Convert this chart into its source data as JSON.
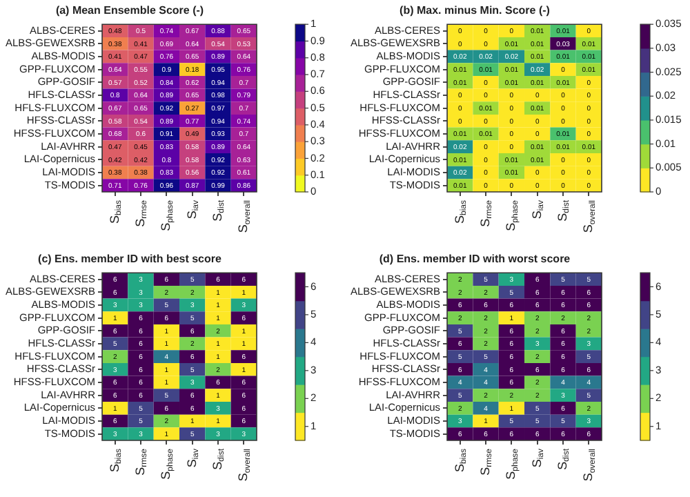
{
  "chart_data": [
    {
      "type": "heatmap",
      "title": "(a) Mean Ensemble Score (-)",
      "categories": [
        "S$_{bias}$",
        "S$_{rmse}$",
        "S$_{phase}$",
        "S$_{iav}$",
        "S$_{dist}$",
        "S$_{overall}$"
      ],
      "y_categories": [
        "ALBS-CERES",
        "ALBS-GEWEXSRB",
        "ALBS-MODIS",
        "GPP-FLUXCOM",
        "GPP-GOSIF",
        "HFLS-CLASSr",
        "HFLS-FLUXCOM",
        "HFSS-CLASSr",
        "HFSS-FLUXCOM",
        "LAI-AVHRR",
        "LAI-Copernicus",
        "LAI-MODIS",
        "TS-MODIS"
      ],
      "cells": [
        [
          0.48,
          0.5,
          0.74,
          0.67,
          0.88,
          0.65
        ],
        [
          0.38,
          0.41,
          0.69,
          0.64,
          0.54,
          0.53
        ],
        [
          0.41,
          0.47,
          0.76,
          0.65,
          0.89,
          0.64
        ],
        [
          0.64,
          0.55,
          0.9,
          0.18,
          0.95,
          0.76
        ],
        [
          0.57,
          0.52,
          0.84,
          0.62,
          0.94,
          0.7
        ],
        [
          0.8,
          0.64,
          0.89,
          0.65,
          0.98,
          0.79
        ],
        [
          0.67,
          0.65,
          0.92,
          0.27,
          0.97,
          0.7
        ],
        [
          0.58,
          0.54,
          0.89,
          0.77,
          0.94,
          0.74
        ],
        [
          0.68,
          0.6,
          0.91,
          0.49,
          0.93,
          0.7
        ],
        [
          0.47,
          0.45,
          0.83,
          0.58,
          0.89,
          0.64
        ],
        [
          0.42,
          0.42,
          0.8,
          0.58,
          0.92,
          0.63
        ],
        [
          0.38,
          0.38,
          0.83,
          0.56,
          0.92,
          0.61
        ],
        [
          0.71,
          0.76,
          0.96,
          0.87,
          0.99,
          0.86
        ]
      ],
      "data_labels": true,
      "colors": [
        "#f0f921",
        "#fdca26",
        "#fba238",
        "#f07f4f",
        "#dd5e66",
        "#c5407e",
        "#a72197",
        "#8606a6",
        "#5c01a6",
        "#0d0887"
      ],
      "clim": [
        0,
        1
      ],
      "cticks": [
        0,
        0.1,
        0.2,
        0.3,
        0.4,
        0.5,
        0.6,
        0.7,
        0.8,
        0.9,
        1
      ]
    },
    {
      "type": "heatmap",
      "title": "(b) Max. minus Min. Score (-)",
      "categories": [
        "S$_{bias}$",
        "S$_{rmse}$",
        "S$_{phase}$",
        "S$_{iav}$",
        "S$_{dist}$",
        "S$_{overall}$"
      ],
      "y_categories": [
        "ALBS-CERES",
        "ALBS-GEWEXSRB",
        "ALBS-MODIS",
        "GPP-FLUXCOM",
        "GPP-GOSIF",
        "HFLS-CLASSr",
        "HFLS-FLUXCOM",
        "HFSS-CLASSr",
        "HFSS-FLUXCOM",
        "LAI-AVHRR",
        "LAI-Copernicus",
        "LAI-MODIS",
        "TS-MODIS"
      ],
      "cells": [
        [
          0,
          0,
          0,
          0.007,
          0.012,
          0
        ],
        [
          0,
          0,
          0.007,
          0.007,
          0.032,
          0.007
        ],
        [
          0.017,
          0.017,
          0.017,
          0.007,
          0.012,
          0.012
        ],
        [
          0.007,
          0.012,
          0.007,
          0.017,
          0,
          0.007
        ],
        [
          0.007,
          0,
          0.007,
          0.007,
          0.007,
          0
        ],
        [
          0,
          0,
          0,
          0,
          0,
          0
        ],
        [
          0,
          0.007,
          0,
          0.007,
          0,
          0
        ],
        [
          0,
          0,
          0,
          0,
          0,
          0
        ],
        [
          0.007,
          0.007,
          0,
          0,
          0.012,
          0
        ],
        [
          0.017,
          0,
          0,
          0.007,
          0.007,
          0.007
        ],
        [
          0.007,
          0,
          0.007,
          0.007,
          0,
          0
        ],
        [
          0.017,
          0,
          0.007,
          0,
          0,
          0
        ],
        [
          0.007,
          0,
          0,
          0,
          0,
          0
        ]
      ],
      "cell_labels": [
        [
          "0",
          "0",
          "0",
          "0.01",
          "0.01",
          "0"
        ],
        [
          "0",
          "0",
          "0.01",
          "0.01",
          "0.03",
          "0.01"
        ],
        [
          "0.02",
          "0.02",
          "0.02",
          "0.01",
          "0.01",
          "0.01"
        ],
        [
          "0.01",
          "0.01",
          "0.01",
          "0.02",
          "0",
          "0.01"
        ],
        [
          "0.01",
          "0",
          "0.01",
          "0.01",
          "0.01",
          "0"
        ],
        [
          "0",
          "0",
          "0",
          "0",
          "0",
          "0"
        ],
        [
          "0",
          "0.01",
          "0",
          "0.01",
          "0",
          "0"
        ],
        [
          "0",
          "0",
          "0",
          "0",
          "0",
          "0"
        ],
        [
          "0.01",
          "0.01",
          "0",
          "0",
          "0.01",
          "0"
        ],
        [
          "0.02",
          "0",
          "0",
          "0.01",
          "0.01",
          "0.01"
        ],
        [
          "0.01",
          "0",
          "0.01",
          "0.01",
          "0",
          "0"
        ],
        [
          "0.02",
          "0",
          "0.01",
          "0",
          "0",
          "0"
        ],
        [
          "0.01",
          "0",
          "0",
          "0",
          "0",
          "0"
        ]
      ],
      "colors": [
        "#fde725",
        "#a0da39",
        "#4ac16d",
        "#21918c",
        "#31688e",
        "#46327e",
        "#440154"
      ],
      "clim": [
        0,
        0.035
      ],
      "cticks": [
        0,
        0.005,
        0.01,
        0.015,
        0.02,
        0.025,
        0.03,
        0.035
      ]
    },
    {
      "type": "heatmap",
      "title": "(c) Ens. member ID with best score",
      "categories": [
        "S$_{bias}$",
        "S$_{rmse}$",
        "S$_{phase}$",
        "S$_{iav}$",
        "S$_{dist}$",
        "S$_{overall}$"
      ],
      "y_categories": [
        "ALBS-CERES",
        "ALBS-GEWEXSRB",
        "ALBS-MODIS",
        "GPP-FLUXCOM",
        "GPP-GOSIF",
        "HFLS-CLASSr",
        "HFLS-FLUXCOM",
        "HFSS-CLASSr",
        "HFSS-FLUXCOM",
        "LAI-AVHRR",
        "LAI-Copernicus",
        "LAI-MODIS",
        "TS-MODIS"
      ],
      "cells": [
        [
          6,
          3,
          6,
          5,
          6,
          6
        ],
        [
          6,
          3,
          2,
          2,
          1,
          1
        ],
        [
          3,
          3,
          5,
          3,
          1,
          3
        ],
        [
          1,
          6,
          6,
          5,
          1,
          6
        ],
        [
          6,
          6,
          1,
          6,
          2,
          1
        ],
        [
          5,
          6,
          1,
          2,
          1,
          1
        ],
        [
          2,
          6,
          4,
          6,
          1,
          6
        ],
        [
          3,
          6,
          1,
          5,
          2,
          1
        ],
        [
          6,
          6,
          1,
          3,
          6,
          6
        ],
        [
          6,
          6,
          5,
          6,
          1,
          6
        ],
        [
          1,
          5,
          6,
          6,
          3,
          6
        ],
        [
          6,
          5,
          2,
          1,
          1,
          6
        ],
        [
          3,
          3,
          1,
          5,
          3,
          3
        ]
      ],
      "data_labels": true,
      "colors": [
        "#fde725",
        "#7ad151",
        "#22a884",
        "#2a788e",
        "#414487",
        "#440154"
      ],
      "clim": [
        0.5,
        6.5
      ],
      "cticks": [
        1,
        2,
        3,
        4,
        5,
        6
      ]
    },
    {
      "type": "heatmap",
      "title": "(d) Ens. member ID with worst score",
      "categories": [
        "S$_{bias}$",
        "S$_{rmse}$",
        "S$_{phase}$",
        "S$_{iav}$",
        "S$_{dist}$",
        "S$_{overall}$"
      ],
      "y_categories": [
        "ALBS-CERES",
        "ALBS-GEWEXSRB",
        "ALBS-MODIS",
        "GPP-FLUXCOM",
        "GPP-GOSIF",
        "HFLS-CLASSr",
        "HFLS-FLUXCOM",
        "HFSS-CLASSr",
        "HFSS-FLUXCOM",
        "LAI-AVHRR",
        "LAI-Copernicus",
        "LAI-MODIS",
        "TS-MODIS"
      ],
      "cells": [
        [
          2,
          5,
          3,
          6,
          5,
          5
        ],
        [
          2,
          2,
          5,
          6,
          6,
          6
        ],
        [
          6,
          6,
          6,
          6,
          6,
          6
        ],
        [
          2,
          2,
          1,
          2,
          2,
          2
        ],
        [
          5,
          2,
          6,
          2,
          6,
          2
        ],
        [
          6,
          2,
          6,
          3,
          6,
          3
        ],
        [
          5,
          5,
          6,
          2,
          6,
          5
        ],
        [
          6,
          4,
          6,
          6,
          6,
          6
        ],
        [
          4,
          4,
          6,
          2,
          4,
          4
        ],
        [
          5,
          2,
          2,
          2,
          3,
          5
        ],
        [
          2,
          4,
          1,
          5,
          6,
          2
        ],
        [
          3,
          1,
          5,
          5,
          5,
          3
        ],
        [
          6,
          6,
          6,
          6,
          6,
          6
        ]
      ],
      "data_labels": true,
      "colors": [
        "#fde725",
        "#7ad151",
        "#22a884",
        "#2a788e",
        "#414487",
        "#440154"
      ],
      "clim": [
        0.5,
        6.5
      ],
      "cticks": [
        1,
        2,
        3,
        4,
        5,
        6
      ]
    }
  ]
}
